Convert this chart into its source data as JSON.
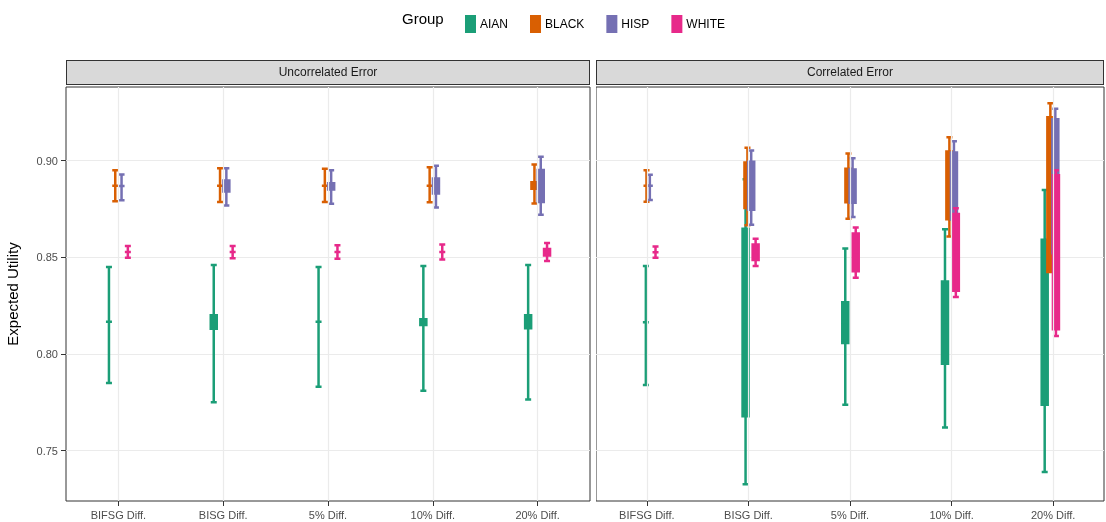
{
  "chart_data": [
    {
      "type": "box",
      "title": "Uncorrelated Error",
      "ylabel": "Expected Utility",
      "legend_title": "Group",
      "legend": "top",
      "grid": true,
      "categories": [
        "BIFSG Diff.",
        "BISG Diff.",
        "5% Diff.",
        "10% Diff.",
        "20% Diff."
      ],
      "ylim": [
        0.724,
        0.938
      ],
      "yticks": [
        {
          "value": 0.75,
          "label": "0.75"
        },
        {
          "value": 0.8,
          "label": "0.80"
        },
        {
          "value": 0.85,
          "label": "0.85"
        },
        {
          "value": 0.9,
          "label": "0.90"
        }
      ],
      "series": [
        {
          "name": "AIAN",
          "color": "#1b9e77",
          "boxes": [
            {
              "low": 0.785,
              "q1": 0.8166,
              "median": 0.8166,
              "q3": 0.8166,
              "high": 0.845
            },
            {
              "low": 0.775,
              "q1": 0.813,
              "median": 0.817,
              "q3": 0.82,
              "high": 0.846
            },
            {
              "low": 0.783,
              "q1": 0.8166,
              "median": 0.8166,
              "q3": 0.8166,
              "high": 0.845
            },
            {
              "low": 0.781,
              "q1": 0.815,
              "median": 0.8166,
              "q3": 0.818,
              "high": 0.8455
            },
            {
              "low": 0.7765,
              "q1": 0.8133,
              "median": 0.8166,
              "q3": 0.82,
              "high": 0.846
            }
          ]
        },
        {
          "name": "BLACK",
          "color": "#d95f02",
          "boxes": [
            {
              "low": 0.879,
              "q1": 0.887,
              "median": 0.887,
              "q3": 0.887,
              "high": 0.895
            },
            {
              "low": 0.8786,
              "q1": 0.887,
              "median": 0.887,
              "q3": 0.887,
              "high": 0.896
            },
            {
              "low": 0.8786,
              "q1": 0.887,
              "median": 0.887,
              "q3": 0.887,
              "high": 0.8957
            },
            {
              "low": 0.8784,
              "q1": 0.887,
              "median": 0.887,
              "q3": 0.887,
              "high": 0.8965
            },
            {
              "low": 0.8778,
              "q1": 0.8854,
              "median": 0.887,
              "q3": 0.8887,
              "high": 0.898
            }
          ]
        },
        {
          "name": "HISP",
          "color": "#7570b3",
          "boxes": [
            {
              "low": 0.8795,
              "q1": 0.8868,
              "median": 0.8868,
              "q3": 0.8868,
              "high": 0.8928
            },
            {
              "low": 0.8768,
              "q1": 0.884,
              "median": 0.8868,
              "q3": 0.8897,
              "high": 0.896
            },
            {
              "low": 0.8776,
              "q1": 0.885,
              "median": 0.8868,
              "q3": 0.8883,
              "high": 0.895
            },
            {
              "low": 0.8757,
              "q1": 0.8829,
              "median": 0.8868,
              "q3": 0.8907,
              "high": 0.8973
            },
            {
              "low": 0.872,
              "q1": 0.8786,
              "median": 0.8868,
              "q3": 0.8951,
              "high": 0.902
            }
          ]
        },
        {
          "name": "WHITE",
          "color": "#e7298a",
          "boxes": [
            {
              "low": 0.8497,
              "q1": 0.8527,
              "median": 0.8527,
              "q3": 0.8527,
              "high": 0.8558
            },
            {
              "low": 0.8495,
              "q1": 0.8527,
              "median": 0.8527,
              "q3": 0.8527,
              "high": 0.8558
            },
            {
              "low": 0.8492,
              "q1": 0.8527,
              "median": 0.8527,
              "q3": 0.8527,
              "high": 0.8562
            },
            {
              "low": 0.8488,
              "q1": 0.8527,
              "median": 0.8527,
              "q3": 0.8527,
              "high": 0.8566
            },
            {
              "low": 0.848,
              "q1": 0.8509,
              "median": 0.8527,
              "q3": 0.8542,
              "high": 0.8573
            }
          ]
        }
      ]
    },
    {
      "type": "box",
      "title": "Correlated Error",
      "grid": true,
      "tick_labels": "x",
      "categories": [
        "BIFSG Diff.",
        "BISG Diff.",
        "5% Diff.",
        "10% Diff.",
        "20% Diff."
      ],
      "ylim": [
        0.724,
        0.938
      ],
      "yticks": [
        0.75,
        0.8,
        0.85,
        0.9
      ],
      "series": [
        {
          "color": "#1b9e77",
          "boxes": [
            {
              "low": 0.784,
              "q1": 0.8164,
              "median": 0.8164,
              "q3": 0.8164,
              "high": 0.8455
            },
            {
              "low": 0.7327,
              "q1": 0.7678,
              "median": 0.8164,
              "q3": 0.8647,
              "high": 0.8903
            },
            {
              "low": 0.7737,
              "q1": 0.8057,
              "median": 0.8164,
              "q3": 0.8268,
              "high": 0.8545
            },
            {
              "low": 0.762,
              "q1": 0.795,
              "median": 0.8164,
              "q3": 0.8375,
              "high": 0.8645
            },
            {
              "low": 0.739,
              "q1": 0.7737,
              "median": 0.8164,
              "q3": 0.859,
              "high": 0.8848
            }
          ]
        },
        {
          "color": "#d95f02",
          "boxes": [
            {
              "low": 0.8787,
              "q1": 0.887,
              "median": 0.887,
              "q3": 0.887,
              "high": 0.895
            },
            {
              "low": 0.8666,
              "q1": 0.8754,
              "median": 0.887,
              "q3": 0.899,
              "high": 0.9066
            },
            {
              "low": 0.8699,
              "q1": 0.8784,
              "median": 0.887,
              "q3": 0.8958,
              "high": 0.9036
            },
            {
              "low": 0.8607,
              "q1": 0.8697,
              "median": 0.887,
              "q3": 0.9047,
              "high": 0.912
            },
            {
              "low": 0.8424,
              "q1": 0.8424,
              "median": 0.887,
              "q3": 0.9223,
              "high": 0.9296
            }
          ]
        },
        {
          "color": "#7570b3",
          "boxes": [
            {
              "low": 0.8796,
              "q1": 0.887,
              "median": 0.887,
              "q3": 0.887,
              "high": 0.8927
            },
            {
              "low": 0.8668,
              "q1": 0.8746,
              "median": 0.887,
              "q3": 0.8993,
              "high": 0.9052
            },
            {
              "low": 0.8708,
              "q1": 0.8782,
              "median": 0.887,
              "q3": 0.8953,
              "high": 0.9012
            },
            {
              "low": 0.8619,
              "q1": 0.8695,
              "median": 0.887,
              "q3": 0.9042,
              "high": 0.9099
            },
            {
              "low": 0.8441,
              "q1": 0.8521,
              "median": 0.887,
              "q3": 0.9213,
              "high": 0.9268
            }
          ]
        },
        {
          "color": "#e7298a",
          "boxes": [
            {
              "low": 0.8497,
              "q1": 0.8526,
              "median": 0.8526,
              "q3": 0.8526,
              "high": 0.8555
            },
            {
              "low": 0.8455,
              "q1": 0.8486,
              "median": 0.8526,
              "q3": 0.8566,
              "high": 0.8595
            },
            {
              "low": 0.8394,
              "q1": 0.8427,
              "median": 0.8526,
              "q3": 0.8623,
              "high": 0.8654
            },
            {
              "low": 0.8294,
              "q1": 0.8327,
              "median": 0.8526,
              "q3": 0.8723,
              "high": 0.8753
            },
            {
              "low": 0.8093,
              "q1": 0.8128,
              "median": 0.8526,
              "q3": 0.8924,
              "high": 0.895
            }
          ]
        }
      ]
    }
  ]
}
